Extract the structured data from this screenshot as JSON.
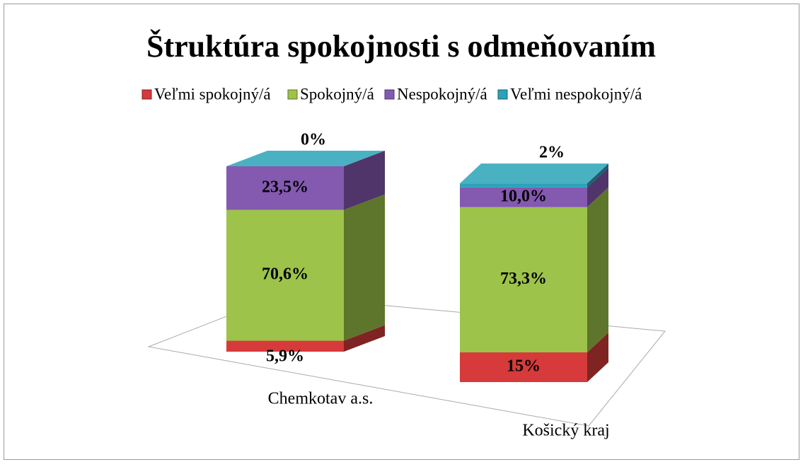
{
  "chart_data": {
    "type": "stacked-bar-3d",
    "title": "Štruktúra spokojnosti s odmeňovaním",
    "categories": [
      "Chemkotav a.s.",
      "Košický kraj"
    ],
    "series": [
      {
        "name": "Veľmi spokojný/á",
        "color": "#d63a3a",
        "values": [
          5.9,
          15
        ],
        "value_labels": [
          "5,9%",
          "15%"
        ]
      },
      {
        "name": "Spokojný/á",
        "color": "#9dc34a",
        "values": [
          70.6,
          73.3
        ],
        "value_labels": [
          "70,6%",
          "73,3%"
        ]
      },
      {
        "name": "Nespokojný/á",
        "color": "#8459b0",
        "values": [
          23.5,
          10.0
        ],
        "value_labels": [
          "23,5%",
          "10,0%"
        ]
      },
      {
        "name": "Veľmi nespokojný/á",
        "color": "#2aa3b8",
        "values": [
          0,
          2
        ],
        "value_labels": [
          "0%",
          "2%"
        ]
      }
    ],
    "legend": "top"
  }
}
